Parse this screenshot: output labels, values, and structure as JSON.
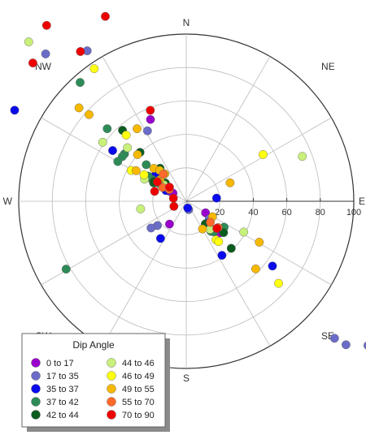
{
  "chart_data": {
    "type": "scatter",
    "subtype": "polar-rose",
    "radial_range": [
      0,
      100
    ],
    "radial_ticks": [
      20,
      40,
      60,
      80,
      100
    ],
    "radial_tick_labels": [
      "20",
      "40",
      "60",
      "80",
      "100"
    ],
    "direction_labels": [
      {
        "deg": 0,
        "label": "N"
      },
      {
        "deg": 45,
        "label": "NE"
      },
      {
        "deg": 90,
        "label": "E"
      },
      {
        "deg": 135,
        "label": "SE"
      },
      {
        "deg": 180,
        "label": "S"
      },
      {
        "deg": 225,
        "label": "SW"
      },
      {
        "deg": 270,
        "label": "W"
      },
      {
        "deg": 315,
        "label": "NW"
      }
    ],
    "spoke_interval_deg": 30,
    "grid": true,
    "legend": {
      "title": "Dip Angle",
      "placement": "bottom-left",
      "entries": [
        {
          "label": "0 to 17",
          "color": "#9900CC"
        },
        {
          "label": "17 to 35",
          "color": "#6B6BC8"
        },
        {
          "label": "35 to 37",
          "color": "#0A0AEE"
        },
        {
          "label": "37 to 42",
          "color": "#2E8B57"
        },
        {
          "label": "42 to 44",
          "color": "#0B5D1E"
        },
        {
          "label": "44 to 46",
          "color": "#C8F07A"
        },
        {
          "label": "46 to 49",
          "color": "#FFFF10"
        },
        {
          "label": "49 to 55",
          "color": "#F7B800"
        },
        {
          "label": "55 to 70",
          "color": "#FF6A2A"
        },
        {
          "label": "70 to 90",
          "color": "#EE0000"
        }
      ]
    },
    "series": [
      {
        "name": "0 to 17",
        "points": [
          {
            "azimuth": 336.4,
            "r": 53.4
          },
          {
            "azimuth": 302.3,
            "r": 23.6
          },
          {
            "azimuth": 301.1,
            "r": 11.6
          },
          {
            "azimuth": 301.6,
            "r": 9.3
          },
          {
            "azimuth": 216.3,
            "r": 16.9
          },
          {
            "azimuth": 120.9,
            "r": 13.4
          },
          {
            "azimuth": 133.0,
            "r": 27.6
          }
        ]
      },
      {
        "name": "17 to 35",
        "points": [
          {
            "azimuth": 316.4,
            "r": 121.7
          },
          {
            "azimuth": 326.7,
            "r": 107.7
          },
          {
            "azimuth": 331.2,
            "r": 48.1
          },
          {
            "azimuth": 300.2,
            "r": 14.4
          },
          {
            "azimuth": 229.9,
            "r": 22.5
          },
          {
            "azimuth": 232.8,
            "r": 26.4
          },
          {
            "azimuth": 163.6,
            "r": 5.2
          },
          {
            "azimuth": 132.8,
            "r": 120.6
          },
          {
            "azimuth": 132.0,
            "r": 128.3
          },
          {
            "azimuth": 128.5,
            "r": 138.6
          },
          {
            "azimuth": 135.5,
            "r": 24.0
          },
          {
            "azimuth": 127.8,
            "r": 17.3
          }
        ]
      },
      {
        "name": "35 to 37",
        "points": [
          {
            "azimuth": 298.0,
            "r": 116.0
          },
          {
            "azimuth": 304.6,
            "r": 53.4
          },
          {
            "azimuth": 309.9,
            "r": 24.2
          },
          {
            "azimuth": 297.8,
            "r": 13.7
          },
          {
            "azimuth": 167.8,
            "r": 4.1
          },
          {
            "azimuth": 84.1,
            "r": 18.2
          },
          {
            "azimuth": 214.6,
            "r": 27.0
          },
          {
            "azimuth": 146.6,
            "r": 38.7
          },
          {
            "azimuth": 127.0,
            "r": 64.4
          },
          {
            "azimuth": 136.1,
            "r": 18.1
          }
        ]
      },
      {
        "name": "37 to 42",
        "points": [
          {
            "azimuth": 318.3,
            "r": 95.2
          },
          {
            "azimuth": 312.6,
            "r": 64.1
          },
          {
            "azimuth": 307.6,
            "r": 46.5
          },
          {
            "azimuth": 305.0,
            "r": 46.6
          },
          {
            "azimuth": 300.2,
            "r": 47.3
          },
          {
            "azimuth": 312.5,
            "r": 32.4
          },
          {
            "azimuth": 302.6,
            "r": 24.1
          },
          {
            "azimuth": 303.3,
            "r": 18.9
          },
          {
            "azimuth": 303.6,
            "r": 27.2
          },
          {
            "azimuth": 240.5,
            "r": 82.4
          },
          {
            "azimuth": 138.9,
            "r": 21.2
          },
          {
            "azimuth": 140.7,
            "r": 23.2
          },
          {
            "azimuth": 138.0,
            "r": 24.6
          },
          {
            "azimuth": 124.4,
            "r": 27.4
          }
        ]
      },
      {
        "name": "42 to 44",
        "points": [
          {
            "azimuth": 318.1,
            "r": 57.0
          },
          {
            "azimuth": 316.7,
            "r": 40.2
          },
          {
            "azimuth": 321.7,
            "r": 25.2
          },
          {
            "azimuth": 299.4,
            "r": 22.4
          },
          {
            "azimuth": 311.4,
            "r": 16.6
          },
          {
            "azimuth": 301.5,
            "r": 22.7
          },
          {
            "azimuth": 140.0,
            "r": 17.7
          },
          {
            "azimuth": 130.1,
            "r": 29.1
          },
          {
            "azimuth": 136.4,
            "r": 38.9
          }
        ]
      },
      {
        "name": "44 to 46",
        "points": [
          {
            "azimuth": 315.4,
            "r": 133.9
          },
          {
            "azimuth": 305.3,
            "r": 61.1
          },
          {
            "azimuth": 312.4,
            "r": 47.5
          },
          {
            "azimuth": 298.0,
            "r": 28.2
          },
          {
            "azimuth": 260.5,
            "r": 27.6
          },
          {
            "azimuth": 306.3,
            "r": 16.7
          },
          {
            "azimuth": 68.8,
            "r": 74.3
          },
          {
            "azimuth": 118.2,
            "r": 38.9
          },
          {
            "azimuth": 139.7,
            "r": 21.9
          },
          {
            "azimuth": 139.8,
            "r": 22.0
          }
        ]
      },
      {
        "name": "46 to 49",
        "points": [
          {
            "azimuth": 325.3,
            "r": 96.5
          },
          {
            "azimuth": 317.8,
            "r": 53.4
          },
          {
            "azimuth": 299.3,
            "r": 37.7
          },
          {
            "azimuth": 302.2,
            "r": 29.8
          },
          {
            "azimuth": 58.6,
            "r": 53.7
          },
          {
            "azimuth": 142.4,
            "r": 29.1
          },
          {
            "azimuth": 131.7,
            "r": 73.8
          },
          {
            "azimuth": 141.3,
            "r": 30.9
          }
        ]
      },
      {
        "name": "49 to 55",
        "points": [
          {
            "azimuth": 311.1,
            "r": 85.0
          },
          {
            "azimuth": 311.8,
            "r": 77.8
          },
          {
            "azimuth": 325.9,
            "r": 52.4
          },
          {
            "azimuth": 313.8,
            "r": 40.3
          },
          {
            "azimuth": 301.4,
            "r": 35.1
          },
          {
            "azimuth": 315.6,
            "r": 27.6
          },
          {
            "azimuth": 319.4,
            "r": 24.3
          },
          {
            "azimuth": 321.9,
            "r": 20.8
          },
          {
            "azimuth": 309.6,
            "r": 20.3
          },
          {
            "azimuth": 305.5,
            "r": 20.7
          },
          {
            "azimuth": 67.1,
            "r": 28.4
          },
          {
            "azimuth": 130.2,
            "r": 24.6
          },
          {
            "azimuth": 149.7,
            "r": 19.2
          },
          {
            "azimuth": 119.3,
            "r": 50.0
          },
          {
            "azimuth": 134.3,
            "r": 57.9
          },
          {
            "azimuth": 120.6,
            "r": 18.2
          }
        ]
      },
      {
        "name": "55 to 70",
        "points": [
          {
            "azimuth": 319.7,
            "r": 21.2
          },
          {
            "azimuth": 304.9,
            "r": 12.4
          },
          {
            "azimuth": 300.4,
            "r": 16.4
          },
          {
            "azimuth": 131.2,
            "r": 19.1
          },
          {
            "azimuth": 129.6,
            "r": 24.7
          }
        ]
      },
      {
        "name": "70 to 90",
        "points": [
          {
            "azimuth": 321.6,
            "r": 134.2
          },
          {
            "azimuth": 324.8,
            "r": 109.6
          },
          {
            "azimuth": 312.1,
            "r": 123.4
          },
          {
            "azimuth": 336.4,
            "r": 120.7
          },
          {
            "azimuth": 338.5,
            "r": 58.5
          },
          {
            "azimuth": 303.9,
            "r": 20.8
          },
          {
            "azimuth": 287.4,
            "r": 19.8
          },
          {
            "azimuth": 310.2,
            "r": 13.1
          },
          {
            "azimuth": 283.2,
            "r": 7.9
          },
          {
            "azimuth": 247.7,
            "r": 8.0
          },
          {
            "azimuth": 131.6,
            "r": 24.4
          }
        ]
      }
    ]
  }
}
